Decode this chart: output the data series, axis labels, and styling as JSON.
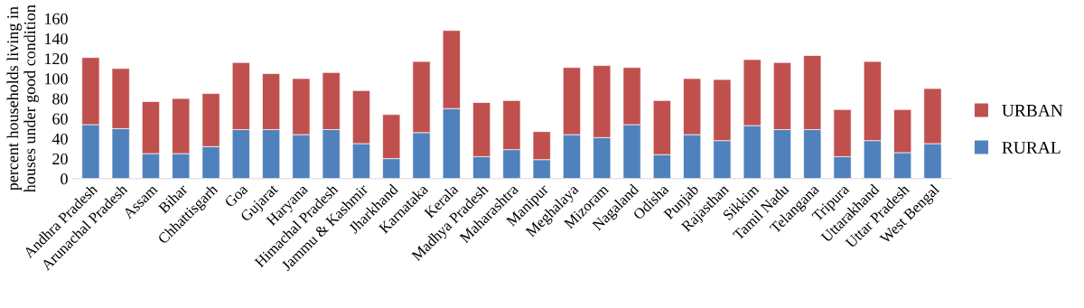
{
  "chart_data": {
    "type": "bar",
    "stacked": true,
    "ylabel": "percent households living in houses under good condition",
    "categories": [
      "Andhra Pradesh",
      "Arunachal Pradesh",
      "Assam",
      "Bihar",
      "Chhattisgarh",
      "Goa",
      "Gujarat",
      "Haryana",
      "Himachal Pradesh",
      "Jammu & Kashmir",
      "Jharkhand",
      "Karnataka",
      "Kerala",
      "Madhya Pradesh",
      "Maharashtra",
      "Manipur",
      "Meghalaya",
      "Mizoram",
      "Nagaland",
      "Odisha",
      "Punjab",
      "Rajasthan",
      "Sikkim",
      "Tamil Nadu",
      "Telangana",
      "Tripura",
      "Uttarakhand",
      "Uttar Pradesh",
      "West Bengal"
    ],
    "series": [
      {
        "name": "RURAL",
        "color": "#4f81bd",
        "values": [
          54,
          50,
          25,
          25,
          32,
          49,
          49,
          44,
          49,
          35,
          20,
          46,
          70,
          22,
          29,
          19,
          44,
          41,
          54,
          24,
          44,
          38,
          53,
          49,
          49,
          22,
          38,
          26,
          35
        ]
      },
      {
        "name": "URBAN",
        "color": "#c0504d",
        "values": [
          67,
          60,
          52,
          55,
          53,
          67,
          56,
          56,
          57,
          53,
          44,
          71,
          78,
          54,
          49,
          28,
          67,
          72,
          57,
          54,
          56,
          61,
          66,
          67,
          74,
          47,
          79,
          43,
          55
        ]
      }
    ],
    "ylim": [
      0,
      160
    ],
    "yticks": [
      0,
      20,
      40,
      60,
      80,
      100,
      120,
      140,
      160
    ],
    "grid": false,
    "legend": "right"
  }
}
